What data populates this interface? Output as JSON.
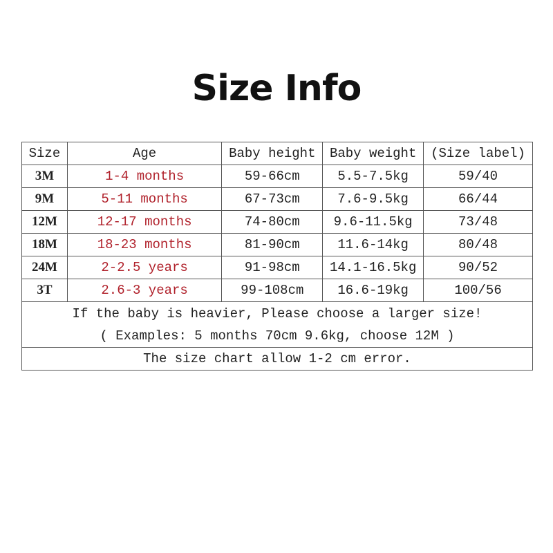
{
  "title": "Size Info",
  "table": {
    "headers": [
      "Size",
      "Age",
      "Baby height",
      "Baby weight",
      "(Size label)"
    ],
    "rows": [
      [
        "3M",
        "1-4 months",
        "59-66cm",
        "5.5-7.5kg",
        "59/40"
      ],
      [
        "9M",
        "5-11 months",
        "67-73cm",
        "7.6-9.5kg",
        "66/44"
      ],
      [
        "12M",
        "12-17 months",
        "74-80cm",
        "9.6-11.5kg",
        "73/48"
      ],
      [
        "18M",
        "18-23 months",
        "81-90cm",
        "11.6-14kg",
        "80/48"
      ],
      [
        "24M",
        "2-2.5 years",
        "91-98cm",
        "14.1-16.5kg",
        "90/52"
      ],
      [
        "3T",
        "2.6-3 years",
        "99-108cm",
        "16.6-19kg",
        "100/56"
      ]
    ],
    "note_line1": "If the baby is heavier, Please choose a larger size!",
    "note_line2": "( Examples: 5 months 70cm 9.6kg, choose 12M )",
    "error_note": "The size chart allow 1-2 cm error."
  },
  "colors": {
    "age_text": "#b0202a",
    "border": "#555555"
  }
}
